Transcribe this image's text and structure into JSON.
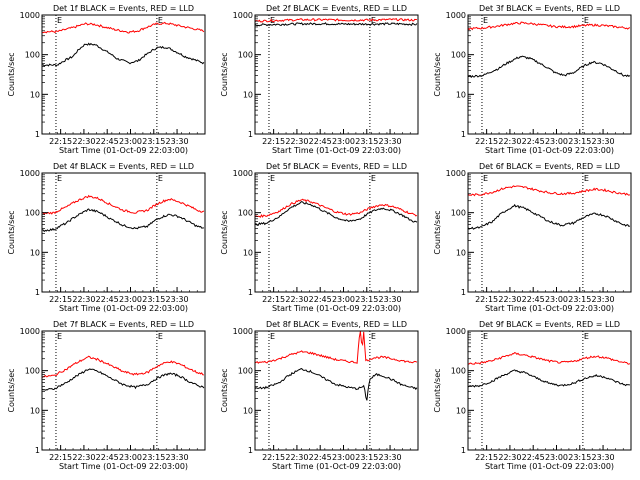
{
  "chart_data": [
    {
      "type": "line",
      "title": "Det 1f BLACK = Events, RED = LLD",
      "xlabel": "Start Time (01-Oct-09 22:03:00)",
      "ylabel": "Counts/sec",
      "yscale": "log",
      "ylim": [
        1,
        1000
      ],
      "xlim_min": [
        0,
        105
      ],
      "x_tick_labels": [
        "22:15",
        "22:30",
        "22:45",
        "23:00",
        "23:15",
        "23:30"
      ],
      "x_tick_minutes": [
        12,
        27,
        42,
        57,
        72,
        87
      ],
      "y_tick_labels": [
        "1",
        "10",
        "100",
        "1000"
      ],
      "y_tick_values": [
        1,
        10,
        100,
        1000
      ],
      "dotted_lines_minutes": [
        9,
        74
      ],
      "annotations": [
        "E",
        "E"
      ],
      "series": [
        {
          "name": "Events",
          "color": "#000000",
          "x": [
            0,
            10,
            20,
            28,
            34,
            40,
            48,
            56,
            62,
            68,
            74,
            80,
            86,
            92,
            100,
            105
          ],
          "values": [
            55,
            55,
            90,
            185,
            180,
            130,
            80,
            62,
            70,
            105,
            150,
            155,
            120,
            90,
            70,
            60
          ]
        },
        {
          "name": "LLD",
          "color": "#ff0000",
          "x": [
            0,
            10,
            20,
            28,
            34,
            40,
            48,
            56,
            62,
            68,
            74,
            80,
            86,
            92,
            100,
            105
          ],
          "values": [
            380,
            380,
            480,
            600,
            580,
            500,
            420,
            370,
            400,
            500,
            600,
            620,
            560,
            500,
            430,
            390
          ]
        }
      ]
    },
    {
      "type": "line",
      "title": "Det 2f BLACK = Events, RED = LLD",
      "xlabel": "Start Time (01-Oct-09 22:03:00)",
      "ylabel": "Counts/sec",
      "yscale": "log",
      "ylim": [
        1,
        1000
      ],
      "xlim_min": [
        0,
        105
      ],
      "x_tick_labels": [
        "22:15",
        "22:30",
        "22:45",
        "23:00",
        "23:15",
        "23:30"
      ],
      "x_tick_minutes": [
        12,
        27,
        42,
        57,
        72,
        87
      ],
      "y_tick_labels": [
        "1",
        "10",
        "100",
        "1000"
      ],
      "y_tick_values": [
        1,
        10,
        100,
        1000
      ],
      "dotted_lines_minutes": [
        9,
        74
      ],
      "annotations": [
        "E",
        "E"
      ],
      "series": [
        {
          "name": "Events",
          "color": "#000000",
          "x": [
            0,
            15,
            30,
            45,
            60,
            75,
            90,
            105
          ],
          "values": [
            560,
            580,
            600,
            600,
            590,
            590,
            600,
            580
          ]
        },
        {
          "name": "LLD",
          "color": "#ff0000",
          "x": [
            0,
            15,
            30,
            45,
            60,
            75,
            90,
            105
          ],
          "values": [
            700,
            730,
            760,
            760,
            740,
            750,
            770,
            740
          ]
        }
      ]
    },
    {
      "type": "line",
      "title": "Det 3f BLACK = Events, RED = LLD",
      "xlabel": "Start Time (01-Oct-09 22:03:00)",
      "ylabel": "Counts/sec",
      "yscale": "log",
      "ylim": [
        1,
        1000
      ],
      "xlim_min": [
        0,
        105
      ],
      "x_tick_labels": [
        "22:15",
        "22:30",
        "22:45",
        "23:00",
        "23:15",
        "23:30"
      ],
      "x_tick_minutes": [
        12,
        27,
        42,
        57,
        72,
        87
      ],
      "y_tick_labels": [
        "1",
        "10",
        "100",
        "1000"
      ],
      "y_tick_values": [
        1,
        10,
        100,
        1000
      ],
      "dotted_lines_minutes": [
        9,
        74
      ],
      "annotations": [
        "E",
        "E"
      ],
      "series": [
        {
          "name": "Events",
          "color": "#000000",
          "x": [
            0,
            10,
            20,
            28,
            34,
            40,
            48,
            56,
            62,
            68,
            74,
            80,
            86,
            92,
            100,
            105
          ],
          "values": [
            28,
            30,
            45,
            70,
            90,
            80,
            55,
            35,
            30,
            35,
            50,
            65,
            60,
            45,
            30,
            28
          ]
        },
        {
          "name": "LLD",
          "color": "#ff0000",
          "x": [
            0,
            10,
            20,
            28,
            34,
            40,
            48,
            56,
            62,
            68,
            74,
            80,
            86,
            92,
            100,
            105
          ],
          "values": [
            450,
            470,
            530,
            600,
            630,
            610,
            560,
            510,
            500,
            510,
            540,
            560,
            550,
            520,
            480,
            460
          ]
        }
      ]
    },
    {
      "type": "line",
      "title": "Det 4f BLACK = Events, RED = LLD",
      "xlabel": "Start Time (01-Oct-09 22:03:00)",
      "ylabel": "Counts/sec",
      "yscale": "log",
      "ylim": [
        1,
        1000
      ],
      "xlim_min": [
        0,
        105
      ],
      "x_tick_labels": [
        "22:15",
        "22:30",
        "22:45",
        "23:00",
        "23:15",
        "23:30"
      ],
      "x_tick_minutes": [
        12,
        27,
        42,
        57,
        72,
        87
      ],
      "y_tick_labels": [
        "1",
        "10",
        "100",
        "1000"
      ],
      "y_tick_values": [
        1,
        10,
        100,
        1000
      ],
      "dotted_lines_minutes": [
        9,
        74
      ],
      "annotations": [
        "E",
        "E"
      ],
      "series": [
        {
          "name": "Events",
          "color": "#000000",
          "x": [
            0,
            8,
            16,
            24,
            30,
            36,
            44,
            52,
            60,
            68,
            76,
            82,
            88,
            94,
            100,
            105
          ],
          "values": [
            35,
            38,
            55,
            90,
            120,
            105,
            70,
            48,
            40,
            45,
            75,
            90,
            80,
            60,
            45,
            40
          ]
        },
        {
          "name": "LLD",
          "color": "#ff0000",
          "x": [
            0,
            8,
            16,
            24,
            30,
            36,
            44,
            52,
            60,
            68,
            76,
            82,
            88,
            94,
            100,
            105
          ],
          "values": [
            95,
            100,
            140,
            210,
            260,
            230,
            160,
            115,
            100,
            115,
            180,
            220,
            190,
            150,
            115,
            105
          ]
        }
      ]
    },
    {
      "type": "line",
      "title": "Det 5f BLACK = Events, RED = LLD",
      "xlabel": "Start Time (01-Oct-09 22:03:00)",
      "ylabel": "Counts/sec",
      "yscale": "log",
      "ylim": [
        1,
        1000
      ],
      "xlim_min": [
        0,
        105
      ],
      "x_tick_labels": [
        "22:15",
        "22:30",
        "22:45",
        "23:00",
        "23:15",
        "23:30"
      ],
      "x_tick_minutes": [
        12,
        27,
        42,
        57,
        72,
        87
      ],
      "y_tick_labels": [
        "1",
        "10",
        "100",
        "1000"
      ],
      "y_tick_values": [
        1,
        10,
        100,
        1000
      ],
      "dotted_lines_minutes": [
        9,
        74
      ],
      "annotations": [
        "E",
        "E"
      ],
      "series": [
        {
          "name": "Events",
          "color": "#000000",
          "x": [
            0,
            8,
            16,
            24,
            30,
            36,
            44,
            52,
            60,
            68,
            76,
            82,
            88,
            94,
            100,
            105
          ],
          "values": [
            50,
            55,
            80,
            140,
            180,
            160,
            110,
            75,
            60,
            70,
            110,
            130,
            115,
            90,
            65,
            55
          ]
        },
        {
          "name": "LLD",
          "color": "#ff0000",
          "x": [
            0,
            8,
            16,
            24,
            30,
            36,
            44,
            52,
            60,
            68,
            76,
            82,
            88,
            94,
            100,
            105
          ],
          "values": [
            80,
            85,
            110,
            170,
            210,
            190,
            140,
            105,
            90,
            100,
            140,
            160,
            145,
            120,
            95,
            85
          ]
        }
      ]
    },
    {
      "type": "line",
      "title": "Det 6f BLACK = Events, RED = LLD",
      "xlabel": "Start Time (01-Oct-09 22:03:00)",
      "ylabel": "Counts/sec",
      "yscale": "log",
      "ylim": [
        1,
        1000
      ],
      "xlim_min": [
        0,
        105
      ],
      "x_tick_labels": [
        "22:15",
        "22:30",
        "22:45",
        "23:00",
        "23:15",
        "23:30"
      ],
      "x_tick_minutes": [
        12,
        27,
        42,
        57,
        72,
        87
      ],
      "y_tick_labels": [
        "1",
        "10",
        "100",
        "1000"
      ],
      "y_tick_values": [
        1,
        10,
        100,
        1000
      ],
      "dotted_lines_minutes": [
        9,
        74
      ],
      "annotations": [
        "E",
        "E"
      ],
      "series": [
        {
          "name": "Events",
          "color": "#000000",
          "x": [
            0,
            8,
            16,
            24,
            30,
            36,
            44,
            52,
            60,
            68,
            76,
            82,
            88,
            94,
            100,
            105
          ],
          "values": [
            40,
            42,
            60,
            110,
            150,
            130,
            90,
            60,
            48,
            55,
            80,
            95,
            85,
            65,
            50,
            45
          ]
        },
        {
          "name": "LLD",
          "color": "#ff0000",
          "x": [
            0,
            8,
            16,
            24,
            30,
            36,
            44,
            52,
            60,
            68,
            76,
            82,
            88,
            94,
            100,
            105
          ],
          "values": [
            280,
            285,
            330,
            420,
            460,
            440,
            370,
            320,
            300,
            310,
            360,
            390,
            370,
            330,
            300,
            290
          ]
        }
      ]
    },
    {
      "type": "line",
      "title": "Det 7f BLACK = Events, RED = LLD",
      "xlabel": "Start Time (01-Oct-09 22:03:00)",
      "ylabel": "Counts/sec",
      "yscale": "log",
      "ylim": [
        1,
        1000
      ],
      "xlim_min": [
        0,
        105
      ],
      "x_tick_labels": [
        "22:15",
        "22:30",
        "22:45",
        "23:00",
        "23:15",
        "23:30"
      ],
      "x_tick_minutes": [
        12,
        27,
        42,
        57,
        72,
        87
      ],
      "y_tick_labels": [
        "1",
        "10",
        "100",
        "1000"
      ],
      "y_tick_values": [
        1,
        10,
        100,
        1000
      ],
      "dotted_lines_minutes": [
        9,
        74
      ],
      "annotations": [
        "E",
        "E"
      ],
      "series": [
        {
          "name": "Events",
          "color": "#000000",
          "x": [
            0,
            8,
            16,
            24,
            30,
            36,
            44,
            52,
            60,
            68,
            76,
            82,
            88,
            94,
            100,
            105
          ],
          "values": [
            32,
            35,
            50,
            80,
            110,
            95,
            65,
            45,
            38,
            45,
            70,
            85,
            75,
            55,
            42,
            38
          ]
        },
        {
          "name": "LLD",
          "color": "#ff0000",
          "x": [
            0,
            8,
            16,
            24,
            30,
            36,
            44,
            52,
            60,
            68,
            76,
            82,
            88,
            94,
            100,
            105
          ],
          "values": [
            70,
            75,
            110,
            170,
            220,
            190,
            135,
            95,
            80,
            90,
            140,
            170,
            150,
            115,
            90,
            80
          ]
        }
      ]
    },
    {
      "type": "line",
      "title": "Det 8f BLACK = Events, RED = LLD",
      "xlabel": "Start Time (01-Oct-09 22:03:00)",
      "ylabel": "Counts/sec",
      "yscale": "log",
      "ylim": [
        1,
        1000
      ],
      "xlim_min": [
        0,
        105
      ],
      "x_tick_labels": [
        "22:15",
        "22:30",
        "22:45",
        "23:00",
        "23:15",
        "23:30"
      ],
      "x_tick_minutes": [
        12,
        27,
        42,
        57,
        72,
        87
      ],
      "y_tick_labels": [
        "1",
        "10",
        "100",
        "1000"
      ],
      "y_tick_values": [
        1,
        10,
        100,
        1000
      ],
      "dotted_lines_minutes": [
        9,
        74
      ],
      "annotations": [
        "E",
        "E"
      ],
      "series": [
        {
          "name": "Events",
          "color": "#000000",
          "x": [
            0,
            8,
            16,
            24,
            30,
            36,
            44,
            52,
            60,
            66,
            70,
            72,
            74,
            78,
            82,
            88,
            94,
            100,
            105
          ],
          "values": [
            35,
            38,
            50,
            85,
            110,
            95,
            65,
            45,
            38,
            35,
            40,
            15,
            60,
            80,
            75,
            60,
            45,
            38,
            35
          ]
        },
        {
          "name": "LLD",
          "color": "#ff0000",
          "x": [
            0,
            8,
            16,
            24,
            30,
            36,
            44,
            52,
            60,
            66,
            68,
            69,
            70,
            71,
            72,
            76,
            82,
            88,
            94,
            100,
            105
          ],
          "values": [
            160,
            165,
            200,
            260,
            300,
            280,
            230,
            190,
            170,
            160,
            1000,
            200,
            1000,
            170,
            180,
            210,
            220,
            200,
            180,
            165,
            160
          ]
        }
      ]
    },
    {
      "type": "line",
      "title": "Det 9f BLACK = Events, RED = LLD",
      "xlabel": "Start Time (01-Oct-09 22:03:00)",
      "ylabel": "Counts/sec",
      "yscale": "log",
      "ylim": [
        1,
        1000
      ],
      "xlim_min": [
        0,
        105
      ],
      "x_tick_labels": [
        "22:15",
        "22:30",
        "22:45",
        "23:00",
        "23:15",
        "23:30"
      ],
      "x_tick_minutes": [
        12,
        27,
        42,
        57,
        72,
        87
      ],
      "y_tick_labels": [
        "1",
        "10",
        "100",
        "1000"
      ],
      "y_tick_values": [
        1,
        10,
        100,
        1000
      ],
      "dotted_lines_minutes": [
        9,
        74
      ],
      "annotations": [
        "E",
        "E"
      ],
      "series": [
        {
          "name": "Events",
          "color": "#000000",
          "x": [
            0,
            8,
            16,
            24,
            30,
            36,
            44,
            52,
            60,
            68,
            76,
            82,
            88,
            94,
            100,
            105
          ],
          "values": [
            40,
            42,
            55,
            80,
            100,
            90,
            65,
            48,
            42,
            48,
            65,
            75,
            70,
            55,
            45,
            42
          ]
        },
        {
          "name": "LLD",
          "color": "#ff0000",
          "x": [
            0,
            8,
            16,
            24,
            30,
            36,
            44,
            52,
            60,
            68,
            76,
            82,
            88,
            94,
            100,
            105
          ],
          "values": [
            150,
            155,
            180,
            230,
            270,
            250,
            210,
            175,
            160,
            170,
            210,
            230,
            215,
            185,
            160,
            150
          ]
        }
      ]
    }
  ]
}
